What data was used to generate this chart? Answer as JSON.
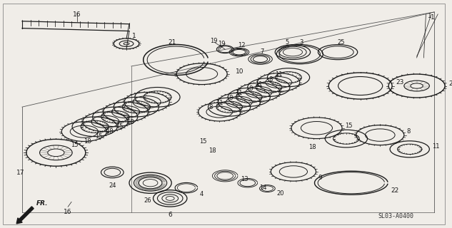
{
  "bg_color": "#f0ede8",
  "fig_width": 6.33,
  "fig_height": 3.2,
  "dpi": 100,
  "diagram_code": "SL03-A0400",
  "line_color": "#1a1a1a"
}
